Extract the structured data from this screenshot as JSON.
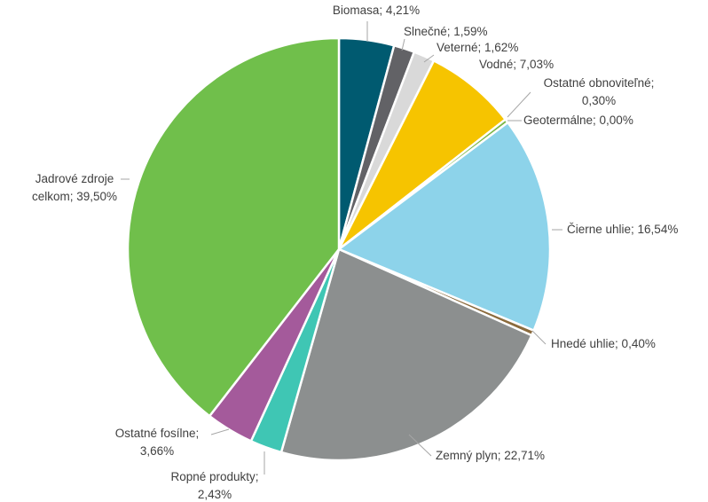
{
  "chart_data": {
    "type": "pie",
    "title": "",
    "unit": "%",
    "slices": [
      {
        "key": "biomasa",
        "label": "Biomasa; 4,21%",
        "value": 4.21,
        "color": "#005a70"
      },
      {
        "key": "slnecne",
        "label": "Slnečné; 1,59%",
        "value": 1.59,
        "color": "#626266"
      },
      {
        "key": "veterne",
        "label": "Veterné; 1,62%",
        "value": 1.62,
        "color": "#d9d9d9"
      },
      {
        "key": "vodne",
        "label": "Vodné; 7,03%",
        "value": 7.03,
        "color": "#f6c400"
      },
      {
        "key": "ostatne-obnovitelne",
        "label": [
          "Ostatné obnoviteľné;",
          "0,30%"
        ],
        "value": 0.3,
        "color": "#7ab648"
      },
      {
        "key": "geotermalne",
        "label": "Geotermálne; 0,00%",
        "value": 0.0,
        "color": "#c0504d"
      },
      {
        "key": "cierne-uhlie",
        "label": "Čierne uhlie; 16,54%",
        "value": 16.54,
        "color": "#8dd3ea"
      },
      {
        "key": "hnede-uhlie",
        "label": "Hnedé uhlie; 0,40%",
        "value": 0.4,
        "color": "#8b6b3d"
      },
      {
        "key": "zemny-plyn",
        "label": "Zemný plyn; 22,71%",
        "value": 22.71,
        "color": "#8c8f8f"
      },
      {
        "key": "ropne-produkty",
        "label": [
          "Ropné produkty;",
          "2,43%"
        ],
        "value": 2.43,
        "color": "#3fc6b4"
      },
      {
        "key": "ostatne-fosilne",
        "label": [
          "Ostatné fosílne;",
          "3,66%"
        ],
        "value": 3.66,
        "color": "#a45a9b"
      },
      {
        "key": "jadrove-zdroje",
        "label": [
          "Jadrové zdroje",
          "celkom; 39,50%"
        ],
        "value": 39.5,
        "color": "#70bf4b"
      }
    ]
  }
}
